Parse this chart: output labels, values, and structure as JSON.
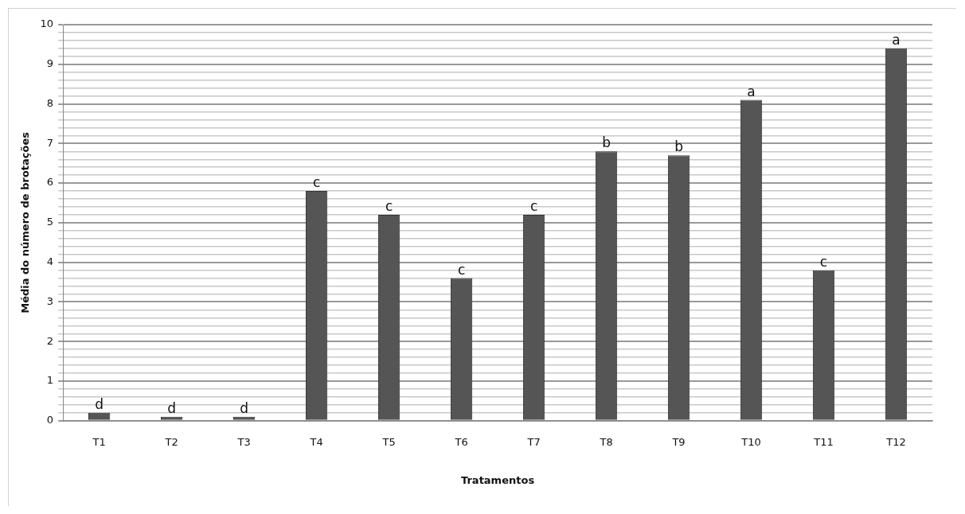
{
  "chart_data": {
    "type": "bar",
    "xlabel": "Tratamentos",
    "ylabel": "Média do número de brotações",
    "categories": [
      "T1",
      "T2",
      "T3",
      "T4",
      "T5",
      "T6",
      "T7",
      "T8",
      "T9",
      "T10",
      "T11",
      "T12"
    ],
    "values": [
      0.2,
      0.1,
      0.1,
      5.8,
      5.2,
      3.6,
      5.2,
      6.8,
      6.7,
      8.1,
      3.8,
      9.4
    ],
    "color": "#555555",
    "ylim": [
      0,
      10
    ],
    "yticks": [
      0,
      {
        "value": 0.2,
        "label": null
      },
      {
        "value": 0.4,
        "label": null
      },
      {
        "value": 0.6,
        "label": null
      },
      {
        "value": 0.8,
        "label": null
      },
      1,
      {
        "value": 1.2,
        "label": null
      },
      {
        "value": 1.4,
        "label": null
      },
      {
        "value": 1.6,
        "label": null
      },
      {
        "value": 1.8,
        "label": null
      },
      2,
      {
        "value": 2.2,
        "label": null
      },
      {
        "value": 2.4,
        "label": null
      },
      {
        "value": 2.6,
        "label": null
      },
      {
        "value": 2.8,
        "label": null
      },
      3,
      {
        "value": 3.2,
        "label": null
      },
      {
        "value": 3.4,
        "label": null
      },
      {
        "value": 3.6,
        "label": null
      },
      {
        "value": 3.8,
        "label": null
      },
      4,
      {
        "value": 4.2,
        "label": null
      },
      {
        "value": 4.4,
        "label": null
      },
      {
        "value": 4.6,
        "label": null
      },
      {
        "value": 4.8,
        "label": null
      },
      5,
      {
        "value": 5.2,
        "label": null
      },
      {
        "value": 5.4,
        "label": null
      },
      {
        "value": 5.6,
        "label": null
      },
      {
        "value": 5.8,
        "label": null
      },
      6,
      {
        "value": 6.2,
        "label": null
      },
      {
        "value": 6.4,
        "label": null
      },
      {
        "value": 6.6,
        "label": null
      },
      {
        "value": 6.8,
        "label": null
      },
      7,
      {
        "value": 7.2,
        "label": null
      },
      {
        "value": 7.4,
        "label": null
      },
      {
        "value": 7.6,
        "label": null
      },
      {
        "value": 7.8,
        "label": null
      },
      8,
      {
        "value": 8.2,
        "label": null
      },
      {
        "value": 8.4,
        "label": null
      },
      {
        "value": 8.6,
        "label": null
      },
      {
        "value": 8.8,
        "label": null
      },
      9,
      {
        "value": 9.2,
        "label": null
      },
      {
        "value": 9.4,
        "label": null
      },
      {
        "value": 9.6,
        "label": null
      },
      {
        "value": 9.8,
        "label": null
      },
      10
    ],
    "grid": "y",
    "legend": false,
    "annotations": [
      {
        "text": "d",
        "x": "T1",
        "y": 0.2
      },
      {
        "text": "d",
        "x": "T2",
        "y": 0.1
      },
      {
        "text": "d",
        "x": "T3",
        "y": 0.1
      },
      {
        "text": "c",
        "x": "T4",
        "y": 5.8
      },
      {
        "text": "c",
        "x": "T5",
        "y": 5.2
      },
      {
        "text": "c",
        "x": "T6",
        "y": 3.6
      },
      {
        "text": "c",
        "x": "T7",
        "y": 5.2
      },
      {
        "text": "b",
        "x": "T8",
        "y": 6.8
      },
      {
        "text": "b",
        "x": "T9",
        "y": 6.7
      },
      {
        "text": "a",
        "x": "T10",
        "y": 8.1
      },
      {
        "text": "c",
        "x": "T11",
        "y": 3.8
      },
      {
        "text": "a",
        "x": "T12",
        "y": 9.4
      }
    ]
  }
}
